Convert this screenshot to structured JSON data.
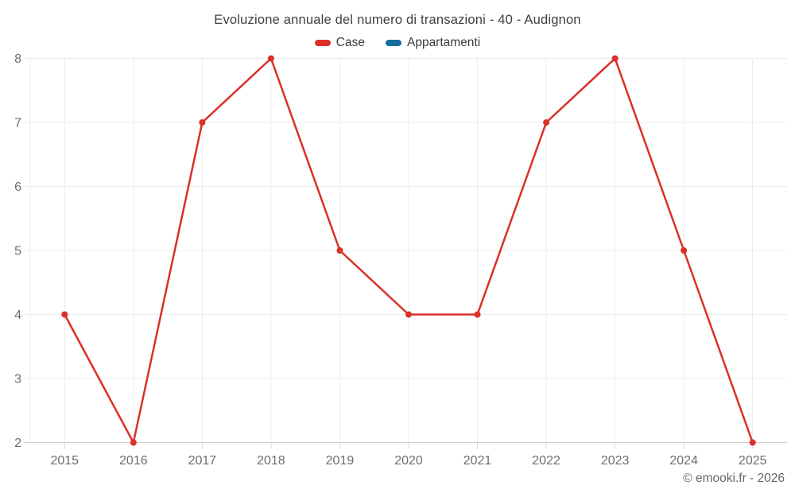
{
  "chart_data": {
    "type": "line",
    "title": "Evoluzione annuale del numero di transazioni - 40 - Audignon",
    "categories": [
      "2015",
      "2016",
      "2017",
      "2018",
      "2019",
      "2020",
      "2021",
      "2022",
      "2023",
      "2024",
      "2025"
    ],
    "series": [
      {
        "name": "Case",
        "color": "#da3027",
        "values": [
          4,
          2,
          7,
          8,
          5,
          4,
          4,
          7,
          8,
          5,
          2
        ]
      },
      {
        "name": "Appartamenti",
        "color": "#176d9e",
        "values": []
      }
    ],
    "xlabel": "",
    "ylabel": "",
    "ylim": [
      2,
      8
    ],
    "yticks": [
      2,
      3,
      4,
      5,
      6,
      7,
      8
    ],
    "grid": true,
    "legend_position": "top",
    "marker_radius": 4,
    "line_width": 2.5
  },
  "footer": {
    "copyright": "© emooki.fr - 2026"
  }
}
